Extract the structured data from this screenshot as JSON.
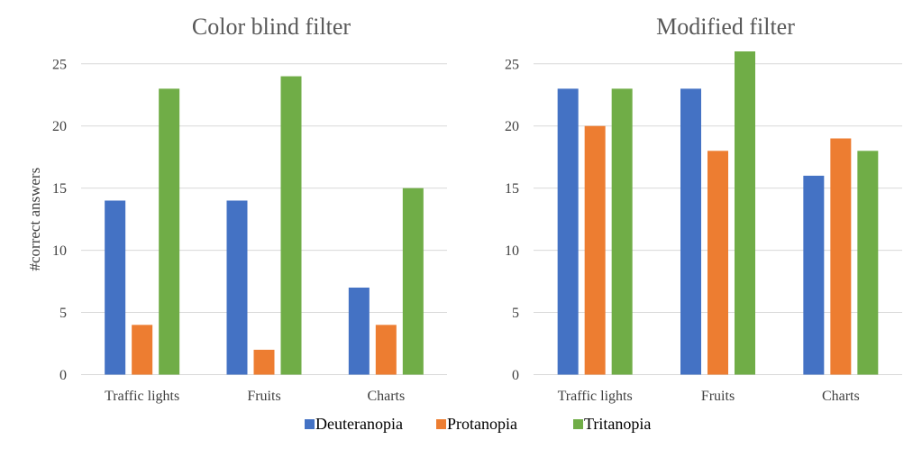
{
  "colors": {
    "Deuteranopia": "#4472c4",
    "Protanopia": "#ed7d31",
    "Tritanopia": "#70ad47"
  },
  "legend": [
    "Deuteranopia",
    "Protanopia",
    "Tritanopia"
  ],
  "legend_placement": "bottom",
  "chart_data": [
    {
      "type": "bar",
      "title": "Color blind filter",
      "xlabel": "",
      "ylabel": "#correct answers",
      "ylim": [
        0,
        25
      ],
      "yticks": [
        0,
        5,
        10,
        15,
        20,
        25
      ],
      "grid": true,
      "categories": [
        "Traffic lights",
        "Fruits",
        "Charts"
      ],
      "series": [
        {
          "name": "Deuteranopia",
          "values": [
            14,
            14,
            7
          ]
        },
        {
          "name": "Protanopia",
          "values": [
            4,
            2,
            4
          ]
        },
        {
          "name": "Tritanopia",
          "values": [
            23,
            24,
            15
          ]
        }
      ]
    },
    {
      "type": "bar",
      "title": "Modified filter",
      "xlabel": "",
      "ylabel": "",
      "ylim": [
        0,
        25
      ],
      "yticks": [
        0,
        5,
        10,
        15,
        20,
        25
      ],
      "grid": true,
      "categories": [
        "Traffic lights",
        "Fruits",
        "Charts"
      ],
      "series": [
        {
          "name": "Deuteranopia",
          "values": [
            23,
            23,
            16
          ]
        },
        {
          "name": "Protanopia",
          "values": [
            20,
            18,
            19
          ]
        },
        {
          "name": "Tritanopia",
          "values": [
            23,
            26,
            18
          ]
        }
      ]
    }
  ]
}
